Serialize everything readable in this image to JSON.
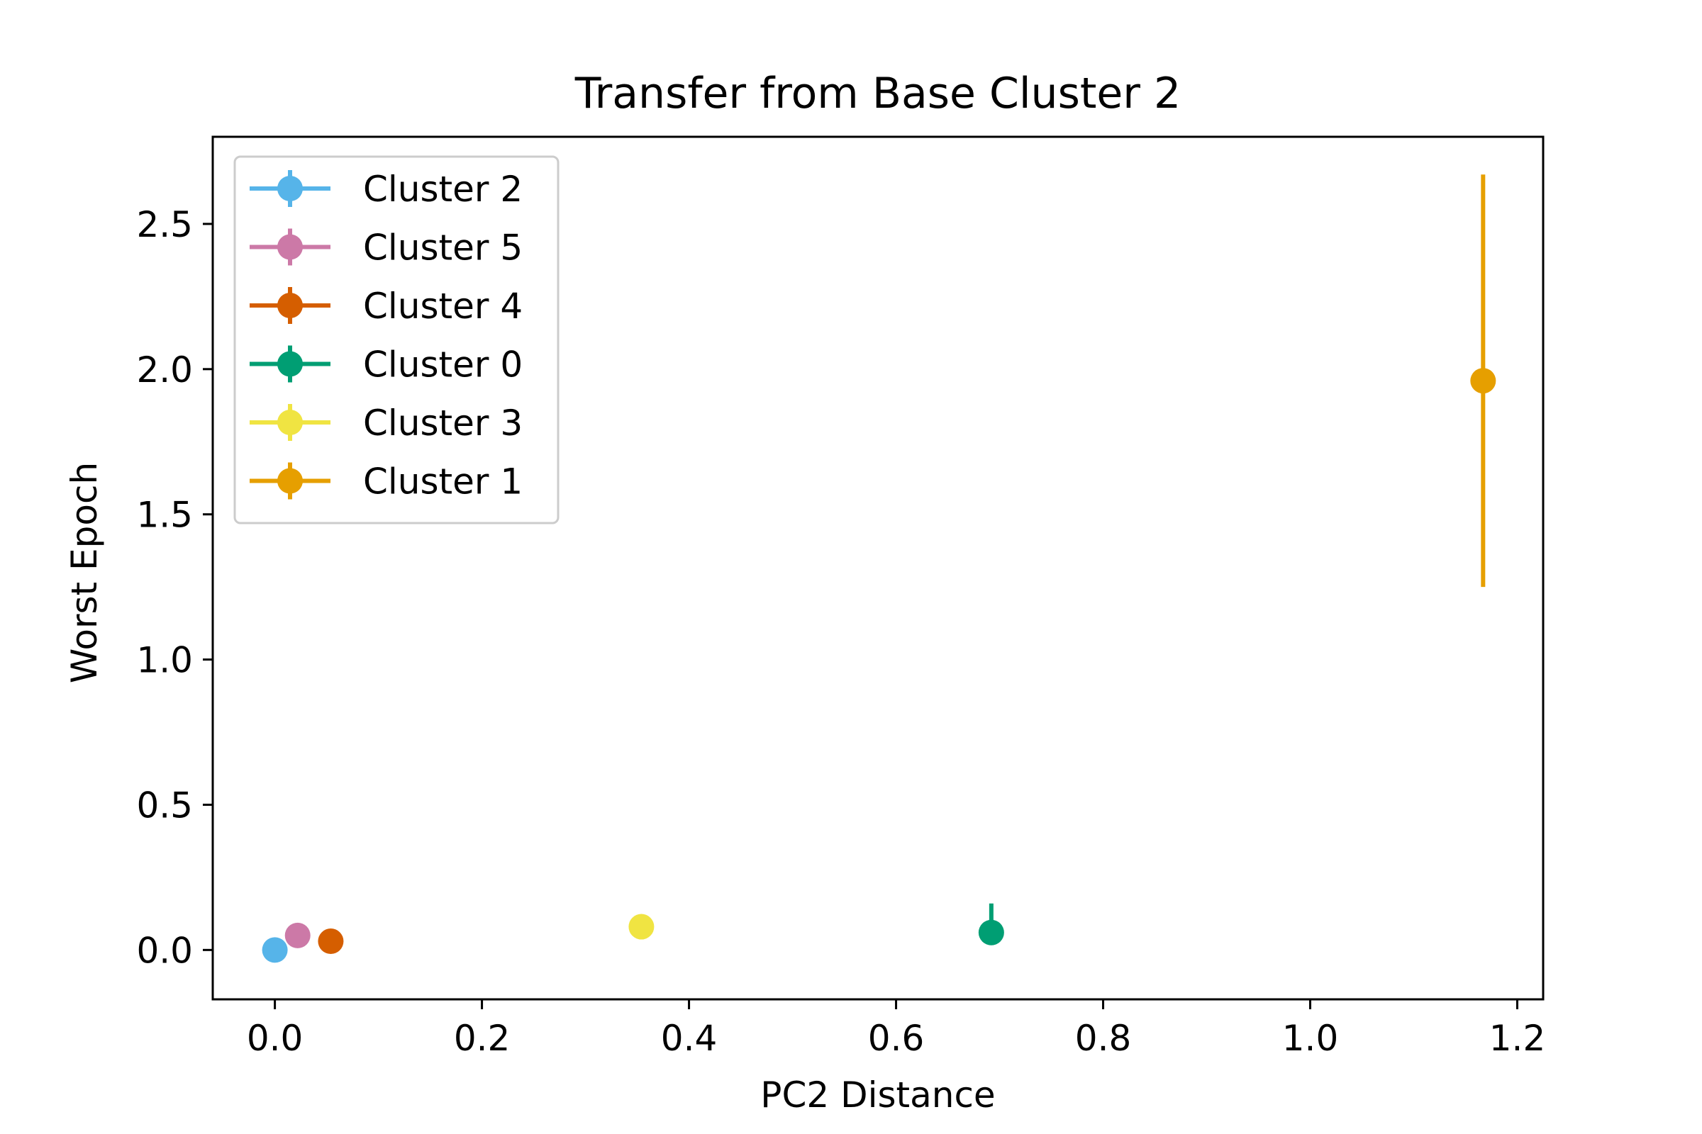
{
  "chart_data": {
    "type": "scatter",
    "title": "Transfer from Base Cluster 2",
    "xlabel": "PC2 Distance",
    "ylabel": "Worst Epoch",
    "xlim": [
      -0.06,
      1.225
    ],
    "ylim": [
      -0.17,
      2.8
    ],
    "xticks": [
      0.0,
      0.2,
      0.4,
      0.6,
      0.8,
      1.0,
      1.2
    ],
    "xtick_labels": [
      "0.0",
      "0.2",
      "0.4",
      "0.6",
      "0.8",
      "1.0",
      "1.2"
    ],
    "yticks": [
      0.0,
      0.5,
      1.0,
      1.5,
      2.0,
      2.5
    ],
    "ytick_labels": [
      "0.0",
      "0.5",
      "1.0",
      "1.5",
      "2.0",
      "2.5"
    ],
    "grid": false,
    "legend_position": "top-left",
    "error_bars": "vertical",
    "series": [
      {
        "name": "Cluster 2",
        "color": "#56B4E9",
        "x": 0.0,
        "y": 0.0,
        "yerr_low": 0.0,
        "yerr_high": 0.0
      },
      {
        "name": "Cluster 5",
        "color": "#CC79A7",
        "x": 0.022,
        "y": 0.05,
        "yerr_low": 0.05,
        "yerr_high": 0.05
      },
      {
        "name": "Cluster 4",
        "color": "#D55E00",
        "x": 0.054,
        "y": 0.03,
        "yerr_low": 0.03,
        "yerr_high": 0.03
      },
      {
        "name": "Cluster 0",
        "color": "#009E73",
        "x": 0.692,
        "y": 0.06,
        "yerr_low": 0.04,
        "yerr_high": 0.16
      },
      {
        "name": "Cluster 3",
        "color": "#F0E442",
        "x": 0.354,
        "y": 0.08,
        "yerr_low": 0.08,
        "yerr_high": 0.08
      },
      {
        "name": "Cluster 1",
        "color": "#E69F00",
        "x": 1.167,
        "y": 1.96,
        "yerr_low": 1.25,
        "yerr_high": 2.67
      }
    ]
  }
}
